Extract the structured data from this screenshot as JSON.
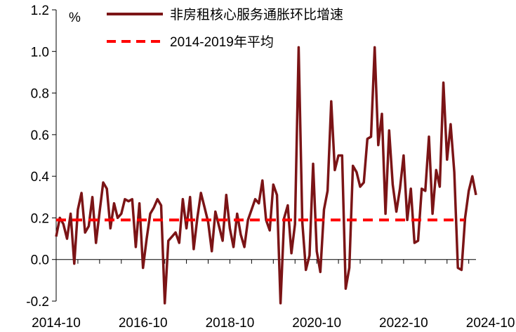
{
  "chart_data": {
    "type": "line",
    "title": "",
    "xlabel": "",
    "ylabel": "%",
    "ylim": [
      -0.2,
      1.2
    ],
    "y_ticks": [
      -0.2,
      0.0,
      0.2,
      0.4,
      0.6,
      0.8,
      1.0,
      1.2
    ],
    "y_tick_labels": [
      "-0.2",
      "0.0",
      "0.2",
      "0.4",
      "0.6",
      "0.8",
      "1.0",
      "1.2"
    ],
    "x_start": "2014-10",
    "x_tick_labels": [
      "2014-10",
      "2016-10",
      "2018-10",
      "2020-10",
      "2022-10",
      "2024-10"
    ],
    "grid": false,
    "legend_position": "top",
    "series": [
      {
        "name": "非房租核心服务通胀环比增速",
        "color": "#7b1416",
        "style": "solid",
        "values": [
          0.11,
          0.2,
          0.17,
          0.1,
          0.22,
          -0.02,
          0.24,
          0.32,
          0.13,
          0.16,
          0.3,
          0.08,
          0.23,
          0.37,
          0.34,
          0.15,
          0.27,
          0.2,
          0.22,
          0.29,
          0.28,
          0.29,
          0.06,
          0.27,
          -0.04,
          0.1,
          0.22,
          0.25,
          0.29,
          0.26,
          -0.21,
          0.09,
          0.11,
          0.13,
          0.08,
          0.29,
          0.15,
          0.3,
          0.05,
          0.2,
          0.32,
          0.25,
          0.18,
          0.04,
          0.23,
          0.16,
          0.09,
          0.31,
          0.15,
          0.06,
          0.22,
          0.12,
          0.06,
          0.19,
          0.24,
          0.29,
          0.27,
          0.38,
          0.19,
          0.14,
          0.36,
          0.31,
          -0.21,
          0.2,
          0.26,
          0.03,
          0.17,
          1.02,
          0.18,
          -0.05,
          0.02,
          0.46,
          0.04,
          -0.06,
          0.24,
          0.33,
          0.76,
          0.43,
          0.5,
          0.5,
          -0.14,
          -0.04,
          0.45,
          0.42,
          0.35,
          0.37,
          0.58,
          0.59,
          1.02,
          0.55,
          0.7,
          0.22,
          0.62,
          0.36,
          0.23,
          0.34,
          0.5,
          0.19,
          0.34,
          0.08,
          0.09,
          0.34,
          0.33,
          0.59,
          0.22,
          0.43,
          0.35,
          0.85,
          0.48,
          0.65,
          0.42,
          -0.04,
          -0.05,
          0.2,
          0.33,
          0.4,
          0.31
        ]
      },
      {
        "name": "2014-2019年平均",
        "color": "#ff0000",
        "style": "dashed",
        "values": [
          0.19,
          0.19
        ]
      }
    ]
  }
}
